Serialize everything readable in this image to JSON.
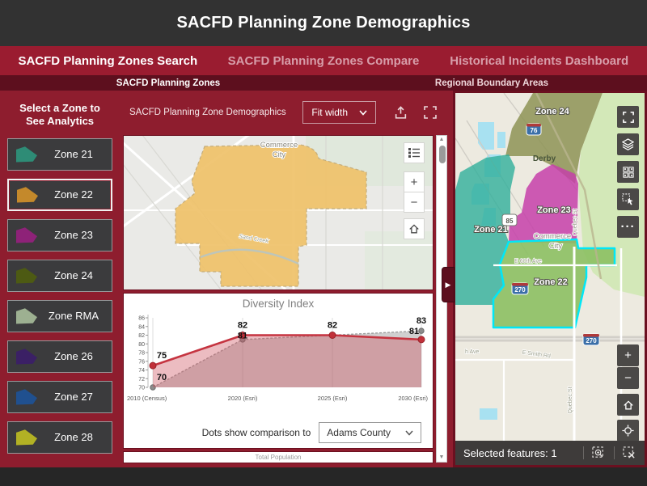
{
  "header": {
    "title": "SACFD Planning Zone Demographics"
  },
  "tabs": [
    {
      "label": "SACFD Planning Zones Search",
      "active": true
    },
    {
      "label": "SACFD Planning Zones Compare",
      "active": false
    },
    {
      "label": "Historical Incidents Dashboard",
      "active": false
    }
  ],
  "subtabs": {
    "left": "SACFD Planning Zones",
    "right": "Regional Boundary Areas"
  },
  "sidebar": {
    "title": "Select a Zone to See Analytics",
    "zones": [
      {
        "label": "Zone 21",
        "color": "#2E8C76",
        "selected": false
      },
      {
        "label": "Zone 22",
        "color": "#C4892B",
        "selected": true
      },
      {
        "label": "Zone 23",
        "color": "#8E2278",
        "selected": false
      },
      {
        "label": "Zone 24",
        "color": "#4D5A13",
        "selected": false
      },
      {
        "label": "Zone RMA",
        "color": "#9DB091",
        "selected": false
      },
      {
        "label": "Zone 26",
        "color": "#3B2065",
        "selected": false
      },
      {
        "label": "Zone 27",
        "color": "#20508F",
        "selected": false
      },
      {
        "label": "Zone 28",
        "color": "#B2B124",
        "selected": false
      }
    ]
  },
  "report": {
    "title": "SACFD Planning Zone Demographics",
    "fit_width": "Fit width",
    "comparison_label": "Dots show comparison to",
    "comparison_value": "Adams County",
    "next_section": "Total Population"
  },
  "report_map": {
    "commerce": "Commerce",
    "city": "City",
    "creek": "Sand Creek"
  },
  "chart_data": {
    "type": "line",
    "title": "Diversity Index",
    "categories": [
      "2010 (Census)",
      "2020 (Esri)",
      "2025 (Esri)",
      "2030 (Esri)"
    ],
    "series": [
      {
        "name": "Zone 22",
        "color": "#C53440",
        "style": "solid",
        "values": [
          75,
          82,
          82,
          81
        ]
      },
      {
        "name": "Adams County",
        "color": "#9E9E9E",
        "style": "dashed",
        "values": [
          70,
          81,
          82,
          83
        ]
      }
    ],
    "ylim": [
      70,
      86
    ],
    "yticks": [
      86,
      84,
      82,
      80,
      78,
      76,
      74,
      72,
      70
    ],
    "grid": true,
    "legend": "none"
  },
  "map_panel": {
    "zone24": "Zone 24",
    "zone23": "Zone 23",
    "zone21": "Zone 21",
    "zone22": "Zone 22",
    "derby": "Derby",
    "commerce": "Commerce",
    "city": "City",
    "e60th": "E 60th Ave",
    "esmith": "E Smith Rd",
    "quebec1": "Quebec St",
    "quebec2": "Quebec St",
    "have": "h Ave",
    "i76": "76",
    "us85": "85",
    "i270a": "270",
    "i270b": "270",
    "status": "Selected features: 1"
  }
}
